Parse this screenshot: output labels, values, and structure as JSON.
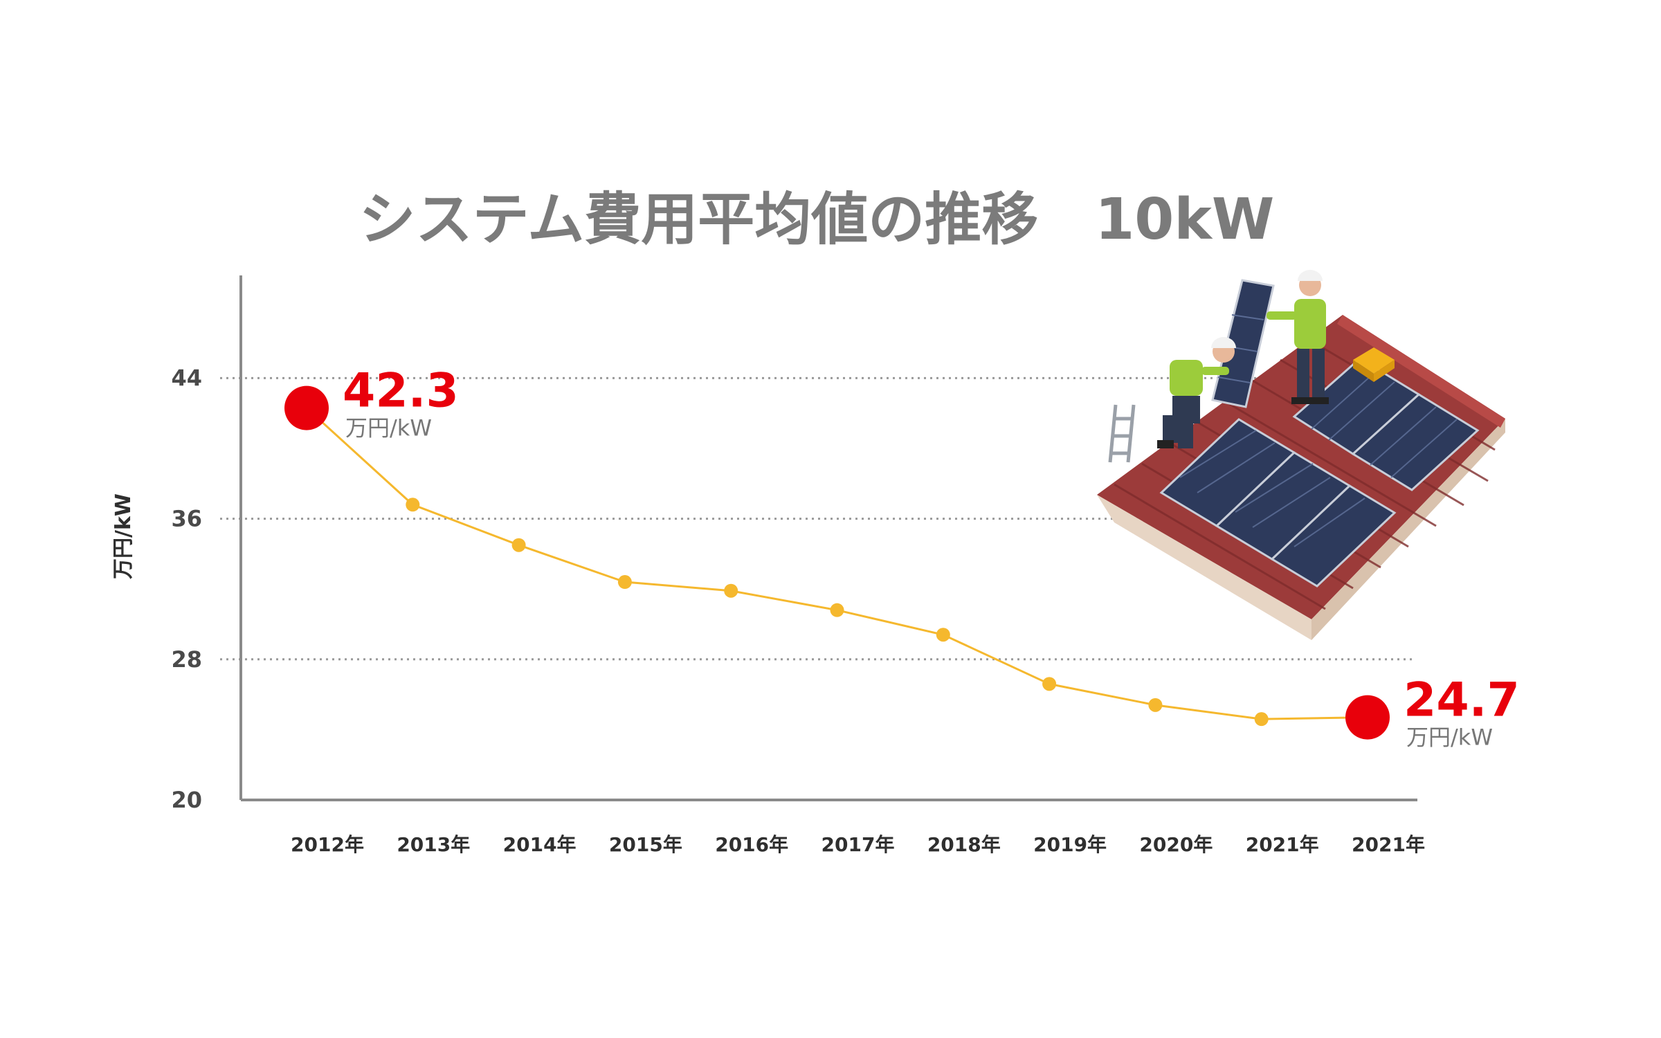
{
  "chart_data": {
    "type": "line",
    "title": "システム費用平均値の推移　10kW",
    "ylabel": "万円/kW",
    "xlabel": "",
    "ylim": [
      20,
      50
    ],
    "yticks": [
      20,
      28,
      36,
      44
    ],
    "grid": true,
    "categories": [
      "2012年",
      "2013年",
      "2014年",
      "2015年",
      "2016年",
      "2017年",
      "2018年",
      "2019年",
      "2020年",
      "2021年",
      "2021年"
    ],
    "series": [
      {
        "values": [
          42.3,
          36.8,
          34.5,
          32.4,
          31.9,
          30.8,
          29.4,
          26.6,
          25.4,
          24.6,
          24.7
        ]
      }
    ],
    "callouts": [
      {
        "index": 0,
        "value": "42.3",
        "unit": "万円/kW"
      },
      {
        "index": 10,
        "value": "24.7",
        "unit": "万円/kW"
      }
    ]
  },
  "colors": {
    "line": "#f5b82e",
    "highlight": "#e8000b",
    "axis": "#8a8a8a",
    "grid": "#999999",
    "title": "#7b7b7b"
  },
  "illustration": {
    "icon": "solar-installers-roof-icon"
  }
}
